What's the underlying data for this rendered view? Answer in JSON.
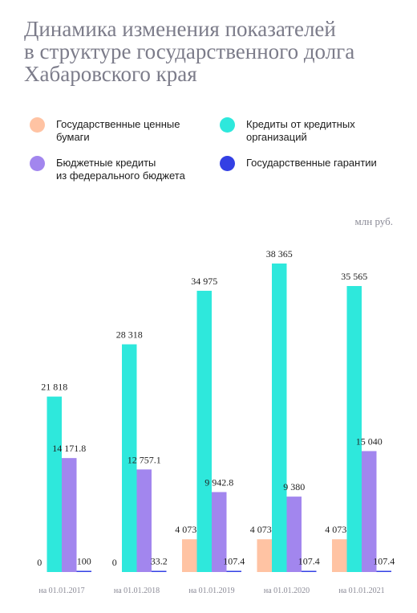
{
  "title_lines": [
    "Динамика изменения показателей",
    "в структуре государственного долга",
    "Хабаровского края"
  ],
  "unit": "млн руб.",
  "chart_data": {
    "type": "bar",
    "categories": [
      "на 01.01.2017",
      "на 01.01.2018",
      "на 01.01.2019",
      "на 01.01.2020",
      "на 01.01.2021"
    ],
    "series": [
      {
        "name_lines": [
          "Государственные ценные",
          "бумаги"
        ],
        "color": "#ffc3a3",
        "values": [
          0,
          0,
          4073.9,
          4073.9,
          4073.9
        ],
        "labels": [
          "0",
          "0",
          "4 073.9",
          "4 073.9",
          "4 073.9"
        ]
      },
      {
        "name_lines": [
          "Кредиты от кредитных",
          "организаций"
        ],
        "color": "#2ee8dc",
        "values": [
          21818,
          28318,
          34975,
          38365,
          35565
        ],
        "labels": [
          "21 818",
          "28 318",
          "34 975",
          "38 365",
          "35 565"
        ]
      },
      {
        "name_lines": [
          "Бюджетные кредиты",
          "из федерального бюджета"
        ],
        "color": "#a286ee",
        "values": [
          14171.8,
          12757.1,
          9942.8,
          9380,
          15040
        ],
        "labels": [
          "14 171.8",
          "12 757.1",
          "9 942.8",
          "9 380",
          "15 040"
        ]
      },
      {
        "name_lines": [
          "Государственные гарантии"
        ],
        "color": "#3340e4",
        "values": [
          100,
          33.2,
          107.4,
          107.4,
          107.4
        ],
        "labels": [
          "100",
          "33.2",
          "107.4",
          "107.4",
          "107.4"
        ]
      }
    ],
    "ylim": [
      0,
      38365
    ],
    "legend": "top",
    "grid": false
  }
}
